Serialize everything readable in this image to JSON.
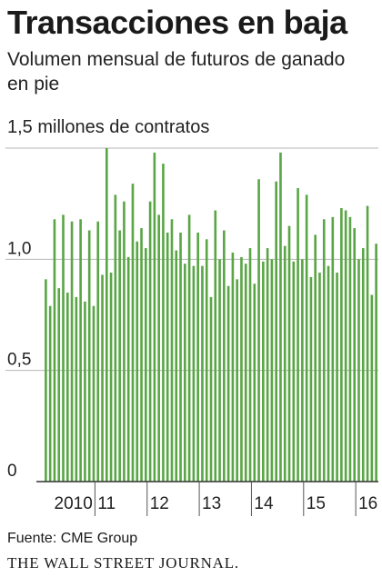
{
  "header": {
    "title": "Transacciones en baja",
    "subtitle": "Volumen mensual de futuros de ganado en pie"
  },
  "footer": {
    "source": "Fuente: CME Group",
    "brand": "THE WALL STREET JOURNAL."
  },
  "colors": {
    "bar": "#5aa646",
    "grid": "#b5b5b5",
    "axis": "#333333",
    "divider": "#555555"
  },
  "chart_data": {
    "type": "bar",
    "unit_label": "1,5 millones de contratos",
    "ylim": [
      0,
      1.5
    ],
    "yticks": [
      {
        "value": 0,
        "label": "0"
      },
      {
        "value": 0.5,
        "label": "0,5"
      },
      {
        "value": 1.0,
        "label": "1,0"
      },
      {
        "value": 1.5,
        "label": ""
      }
    ],
    "xticks": [
      {
        "index": 0,
        "label": "2010"
      },
      {
        "index": 12,
        "label": "11"
      },
      {
        "index": 24,
        "label": "12"
      },
      {
        "index": 36,
        "label": "13"
      },
      {
        "index": 48,
        "label": "14"
      },
      {
        "index": 60,
        "label": "15"
      },
      {
        "index": 72,
        "label": "16"
      }
    ],
    "grid": true,
    "series": [
      {
        "values": [
          0.91,
          0.79,
          1.18,
          0.87,
          1.2,
          0.85,
          1.17,
          0.83,
          1.18,
          0.81,
          1.13,
          0.79,
          1.17,
          0.93,
          1.5,
          0.94,
          1.29,
          1.13,
          1.26,
          1.01,
          1.34,
          1.08,
          1.14,
          1.05,
          1.26,
          1.48,
          1.2,
          1.43,
          1.12,
          1.18,
          1.04,
          1.12,
          0.98,
          1.2,
          0.97,
          1.12,
          0.97,
          1.09,
          0.83,
          1.22,
          1.0,
          1.13,
          0.88,
          1.03,
          0.91,
          1.01,
          0.98,
          1.05,
          0.89,
          1.36,
          0.99,
          1.05,
          1.0,
          1.35,
          1.48,
          1.06,
          1.15,
          0.99,
          1.32,
          1.0,
          1.29,
          0.92,
          1.11,
          0.94,
          1.18,
          0.97,
          1.19,
          0.94,
          1.23,
          1.22,
          1.19,
          1.14,
          1.0,
          1.05,
          1.24,
          0.84,
          1.07
        ]
      }
    ]
  }
}
